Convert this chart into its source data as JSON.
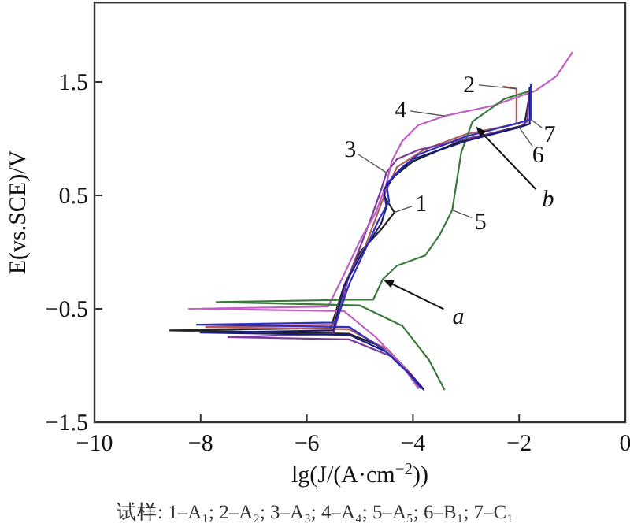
{
  "chart_data": {
    "type": "line",
    "xlabel": "lg(J/(A·cm$^{−2}$))",
    "ylabel": "E(vs.SCE)/V",
    "xlim": [
      -10,
      0
    ],
    "xticks": [
      {
        "value": -10,
        "label": "−10"
      },
      {
        "value": -8,
        "label": "−8"
      },
      {
        "value": -6,
        "label": "−6"
      },
      {
        "value": -4,
        "label": "−4"
      },
      {
        "value": -2,
        "label": "−2"
      },
      0
    ],
    "ylim": [
      -1.5,
      2.2
    ],
    "yticks": [
      {
        "value": -1.5,
        "label": "−1.5"
      },
      {
        "value": -0.5,
        "label": "−0.5"
      },
      0.5,
      1.5
    ],
    "grid": false,
    "marker": "none",
    "line_style": "solid",
    "series": [
      {
        "name": "1",
        "color": "#222222",
        "x": [
          -3.85,
          -4.1,
          -4.5,
          -5.2,
          -8.58,
          -5.55,
          -5.3,
          -5.0,
          -4.6,
          -4.35,
          -4.55,
          -4.4,
          -4.0,
          -3.1,
          -1.9,
          -1.8
        ],
        "values": [
          -1.2,
          -1.05,
          -0.85,
          -0.72,
          -0.69,
          -0.67,
          -0.3,
          0.0,
          0.2,
          0.35,
          0.5,
          0.65,
          0.8,
          0.98,
          1.12,
          1.4
        ]
      },
      {
        "name": "2",
        "color": "#b05a5a",
        "x": [
          -3.8,
          -4.05,
          -4.45,
          -5.2,
          -7.9,
          -5.5,
          -5.25,
          -4.9,
          -4.7,
          -4.5,
          -4.3,
          -3.8,
          -3.0,
          -2.05,
          -2.05,
          -2.3
        ],
        "values": [
          -1.21,
          -1.07,
          -0.87,
          -0.68,
          -0.66,
          -0.64,
          -0.25,
          0.05,
          0.3,
          0.55,
          0.75,
          0.9,
          1.04,
          1.13,
          1.44,
          1.46
        ]
      },
      {
        "name": "3",
        "color": "#7a3a9a",
        "x": [
          -3.8,
          -4.0,
          -4.4,
          -5.2,
          -7.48,
          -5.5,
          -5.2,
          -4.95,
          -4.75,
          -4.6,
          -4.5,
          -4.3,
          -3.9,
          -3.0,
          -2.0,
          -1.85,
          -1.8
        ],
        "values": [
          -1.21,
          -1.1,
          -0.92,
          -0.77,
          -0.75,
          -0.72,
          -0.2,
          0.1,
          0.35,
          0.55,
          0.7,
          0.82,
          0.9,
          1.0,
          1.1,
          1.15,
          1.45
        ]
      },
      {
        "name": "4",
        "color": "#c060c0",
        "x": [
          -3.9,
          -4.2,
          -4.7,
          -5.3,
          -8.22,
          -5.6,
          -5.3,
          -5.0,
          -4.7,
          -4.5,
          -4.4,
          -4.2,
          -3.9,
          -3.4,
          -2.5,
          -1.7,
          -1.3,
          -1.0
        ],
        "values": [
          -1.2,
          -1.0,
          -0.75,
          -0.52,
          -0.5,
          -0.48,
          -0.2,
          0.1,
          0.35,
          0.6,
          0.8,
          0.98,
          1.12,
          1.2,
          1.29,
          1.42,
          1.55,
          1.76
        ]
      },
      {
        "name": "5",
        "color": "#3a7a3a",
        "x": [
          -3.41,
          -3.7,
          -4.2,
          -5.0,
          -7.7,
          -5.2,
          -4.75,
          -4.57,
          -4.3,
          -3.77,
          -3.5,
          -3.26,
          -3.09,
          -2.88,
          -2.28,
          -1.8
        ],
        "values": [
          -1.21,
          -0.95,
          -0.65,
          -0.47,
          -0.44,
          -0.42,
          -0.42,
          -0.24,
          -0.12,
          -0.03,
          0.15,
          0.37,
          0.88,
          1.15,
          1.35,
          1.42
        ]
      },
      {
        "name": "6",
        "color": "#1a1a7a",
        "x": [
          -3.8,
          -4.05,
          -4.5,
          -5.2,
          -8.0,
          -5.5,
          -5.3,
          -4.95,
          -4.6,
          -4.5,
          -4.55,
          -4.3,
          -4.0,
          -3.0,
          -2.0,
          -1.8,
          -1.8
        ],
        "values": [
          -1.21,
          -1.08,
          -0.88,
          -0.73,
          -0.71,
          -0.69,
          -0.3,
          0.0,
          0.25,
          0.4,
          0.55,
          0.7,
          0.82,
          0.98,
          1.1,
          1.13,
          1.45
        ]
      },
      {
        "name": "7",
        "color": "#3030c0",
        "x": [
          -3.85,
          -4.1,
          -4.55,
          -5.2,
          -8.07,
          -5.45,
          -5.2,
          -4.9,
          -4.65,
          -4.45,
          -4.5,
          -4.2,
          -3.9,
          -3.0,
          -2.0,
          -1.78,
          -1.78
        ],
        "values": [
          -1.2,
          -1.06,
          -0.86,
          -0.66,
          -0.64,
          -0.62,
          -0.28,
          0.02,
          0.28,
          0.45,
          0.6,
          0.75,
          0.86,
          1.02,
          1.14,
          1.17,
          1.48
        ]
      }
    ],
    "annotations": [
      {
        "text": "a",
        "x": -4.57,
        "y": -0.24
      },
      {
        "text": "b",
        "x": -2.82,
        "y": 1.11
      },
      "试样: 1–A₁; 2–A₂; 3–A₃; 4–A₄; 5–A₅; 6–B₁; 7–C₁"
    ]
  }
}
